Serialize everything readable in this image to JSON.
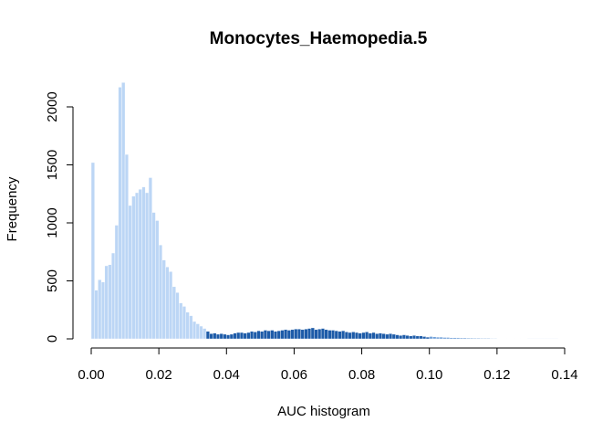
{
  "chart_data": {
    "type": "bar",
    "title": "Monocytes_Haemopedia.5",
    "xlabel": "AUC histogram",
    "ylabel": "Frequency",
    "xlim": [
      0,
      0.14
    ],
    "ylim": [
      0,
      2000
    ],
    "x_ticks": [
      "0.00",
      "0.02",
      "0.04",
      "0.06",
      "0.08",
      "0.10",
      "0.12",
      "0.14"
    ],
    "y_ticks": [
      "0",
      "500",
      "1000",
      "1500",
      "2000"
    ],
    "bin_width": 0.001,
    "grid": false,
    "colors": {
      "below_threshold": "#BCD6F5",
      "above_threshold": "#1D5BA8",
      "tail": "#6F9FD8",
      "border": "#ffffff"
    },
    "threshold_start": 0.034,
    "threshold_end": 0.1,
    "series": [
      {
        "bin_start": 0.0,
        "values": [
          1520,
          420,
          510,
          490,
          630,
          640,
          740,
          980,
          2170,
          2210,
          1590,
          1150,
          1230,
          1260,
          1290,
          1310,
          1260,
          1390,
          1090,
          1020,
          810,
          680,
          620,
          580,
          450,
          400,
          310,
          280,
          230,
          200,
          150,
          130,
          110,
          90,
          65,
          45,
          50,
          40,
          45,
          40,
          35,
          40,
          50,
          55,
          55,
          50,
          55,
          65,
          60,
          70,
          65,
          75,
          70,
          75,
          65,
          70,
          75,
          80,
          75,
          80,
          85,
          85,
          80,
          85,
          90,
          95,
          80,
          85,
          90,
          80,
          75,
          75,
          70,
          65,
          70,
          60,
          55,
          60,
          55,
          50,
          55,
          60,
          50,
          55,
          45,
          50,
          45,
          40,
          45,
          40,
          35,
          30,
          35,
          30,
          25,
          30,
          25,
          25,
          20,
          15,
          20,
          18,
          15,
          15,
          12,
          12,
          10,
          10,
          9,
          8,
          8,
          7,
          7,
          6,
          6,
          5,
          5,
          5,
          4,
          4,
          3,
          3,
          3,
          3,
          2,
          2,
          2,
          2,
          2,
          1,
          1,
          1,
          1,
          1,
          1,
          1,
          1,
          1
        ]
      }
    ]
  }
}
